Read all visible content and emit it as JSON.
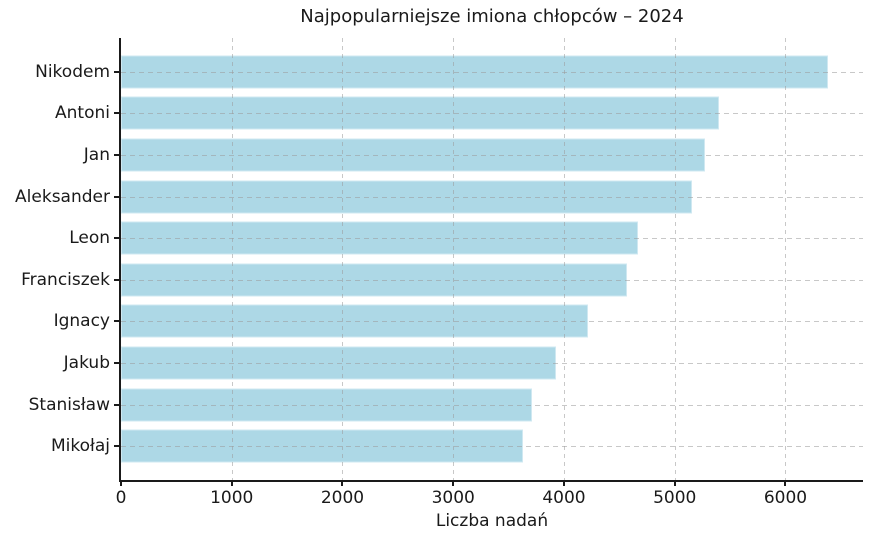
{
  "chart_data": {
    "type": "bar",
    "orientation": "horizontal",
    "title": "Najpopularniejsze imiona chłopców – 2024",
    "categories": [
      "Nikodem",
      "Antoni",
      "Jan",
      "Aleksander",
      "Leon",
      "Franciszek",
      "Ignacy",
      "Jakub",
      "Stanisław",
      "Mikołaj"
    ],
    "values": [
      6380,
      5400,
      5270,
      5160,
      4670,
      4570,
      4220,
      3930,
      3710,
      3630
    ],
    "xlabel": "Liczba nadań",
    "ylabel": "",
    "xlim": [
      0,
      6700
    ],
    "xticks": [
      0,
      1000,
      2000,
      3000,
      4000,
      5000,
      6000
    ],
    "legend": "none",
    "grid": "dashed gray, vertical at each xtick and horizontal at each bar center, drawn over bars",
    "colors": {
      "bar_fill": "#ADD8E6",
      "bar_edge": "#cfe8f1",
      "grid": "#9b9b9b",
      "axis": "#1a1a1a",
      "text": "#1a1a1a",
      "background": "#ffffff"
    }
  }
}
